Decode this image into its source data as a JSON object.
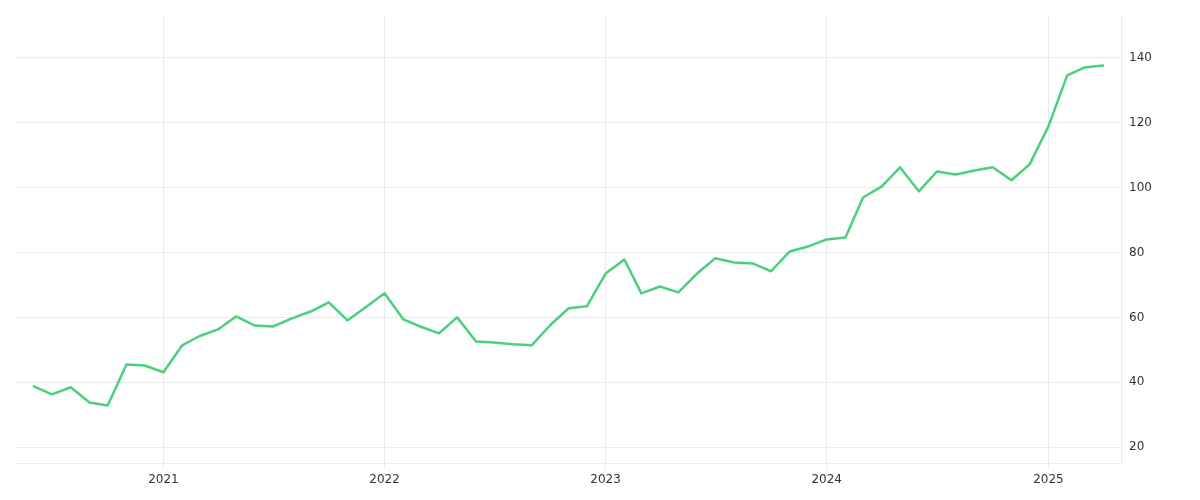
{
  "chart_data": {
    "type": "line",
    "x": [
      "2020-06",
      "2020-07",
      "2020-08",
      "2020-09",
      "2020-10",
      "2020-11",
      "2020-12",
      "2021-01",
      "2021-02",
      "2021-03",
      "2021-04",
      "2021-05",
      "2021-06",
      "2021-07",
      "2021-08",
      "2021-09",
      "2021-10",
      "2021-11",
      "2021-12",
      "2022-01",
      "2022-02",
      "2022-03",
      "2022-04",
      "2022-05",
      "2022-06",
      "2022-07",
      "2022-08",
      "2022-09",
      "2022-10",
      "2022-11",
      "2022-12",
      "2023-01",
      "2023-02",
      "2023-03",
      "2023-04",
      "2023-05",
      "2023-06",
      "2023-07",
      "2023-08",
      "2023-09",
      "2023-10",
      "2023-11",
      "2023-12",
      "2024-01",
      "2024-02",
      "2024-03",
      "2024-04",
      "2024-05",
      "2024-06",
      "2024-07",
      "2024-08",
      "2024-09",
      "2024-10",
      "2024-11",
      "2024-12",
      "2025-01",
      "2025-02",
      "2025-03",
      "2025-04"
    ],
    "series": [
      {
        "color": "#4cd07d",
        "values": [
          38.8,
          36.3,
          38.5,
          33.8,
          32.9,
          45.5,
          45.2,
          43.1,
          51.4,
          54.2,
          56.3,
          60.3,
          57.5,
          57.2,
          59.7,
          61.8,
          64.6,
          59.1,
          63.1,
          67.4,
          59.4,
          57.2,
          55.1,
          60.0,
          52.6,
          52.3,
          51.7,
          51.4,
          57.5,
          62.8,
          63.4,
          73.5,
          77.8,
          67.4,
          69.5,
          67.7,
          73.5,
          78.2,
          76.9,
          76.6,
          74.2,
          80.3,
          81.8,
          84.0,
          84.6,
          96.9,
          100.3,
          106.2,
          98.8,
          104.9,
          104.0,
          105.2,
          106.2,
          102.2,
          107.1,
          118.8,
          134.5,
          136.9,
          137.5
        ]
      }
    ],
    "xlim": [
      "2020-05",
      "2025-05"
    ],
    "xticks": [
      "2021",
      "2022",
      "2023",
      "2024",
      "2025"
    ],
    "ylim": [
      15,
      153
    ],
    "yticks": [
      20,
      40,
      60,
      80,
      100,
      120,
      140
    ],
    "grid": true,
    "legend": false,
    "marker": "none",
    "line_style": "solid"
  }
}
